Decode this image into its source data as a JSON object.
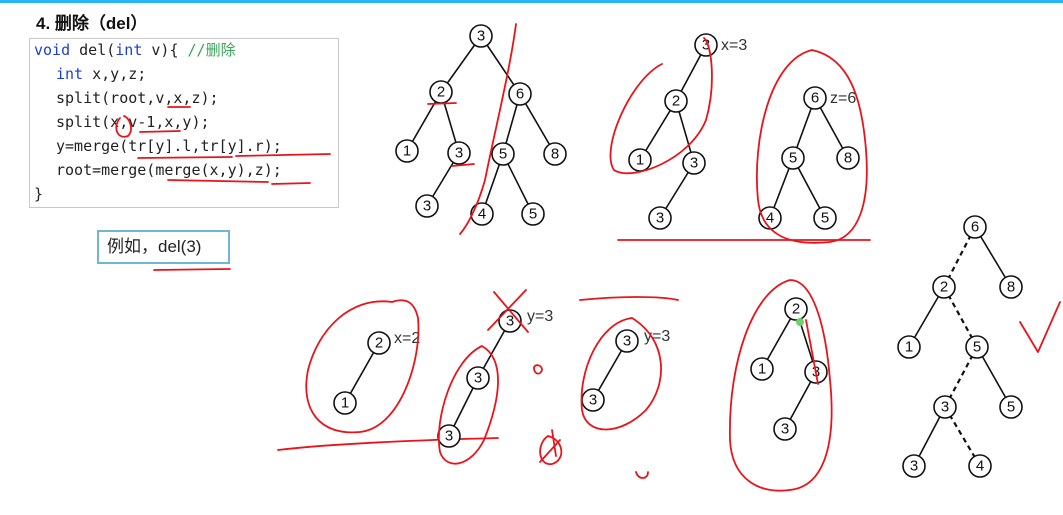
{
  "title": "4. 删除（del）",
  "code": {
    "line1": {
      "kw1": "void",
      "mid1": " del(",
      "kw2": "int",
      "mid2": " v){ ",
      "comment": "//删除"
    },
    "line2": {
      "kw": "int",
      "rest": " x,y,z;"
    },
    "line3": "split(root,v,x,z);",
    "line4": "split(x,v-1,x,y);",
    "line5": "y=merge(tr[y].l,tr[y].r);",
    "line6": "root=merge(merge(x,y),z);",
    "line7": "}"
  },
  "example_label": "例如，del(3)",
  "labels": {
    "x3": "x=3",
    "z6": "z=6",
    "x2": "x=2",
    "y3a": "y=3",
    "y3b": "y=3"
  },
  "trees": {
    "original": [
      "3",
      "2",
      "6",
      "1",
      "3",
      "5",
      "8",
      "3",
      "4",
      "5"
    ],
    "split_x": [
      "3",
      "2",
      "1",
      "3",
      "3"
    ],
    "split_z": [
      "6",
      "5",
      "8",
      "4",
      "5"
    ],
    "second_x": [
      "2",
      "1"
    ],
    "second_y": [
      "3",
      "3",
      "3"
    ],
    "merged_y": [
      "3",
      "3"
    ],
    "merged_xy": [
      "2",
      "1",
      "3",
      "3"
    ],
    "final": [
      "6",
      "2",
      "8",
      "1",
      "5",
      "3",
      "5",
      "3",
      "4"
    ]
  },
  "colors": {
    "accent": "#29b6f6",
    "ink": "#e8141a",
    "keyword": "#1c3fd6",
    "comment": "#3aa556",
    "boxBorder": "#6fb6d6"
  }
}
